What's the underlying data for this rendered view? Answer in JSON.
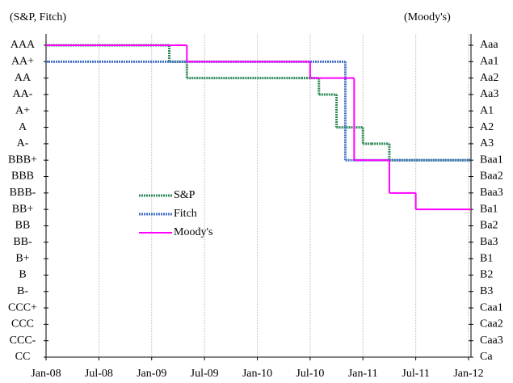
{
  "chart_data": {
    "type": "step",
    "y_label": "(S&P, Fitch)",
    "y2_label": "(Moody's)",
    "xlim": [
      "2008-01",
      "2012-01"
    ],
    "xticks": [
      {
        "value": "2008-01",
        "label": "Jan-08"
      },
      {
        "value": "2008-07",
        "label": "Jul-08"
      },
      {
        "value": "2009-01",
        "label": "Jan-09"
      },
      {
        "value": "2009-07",
        "label": "Jul-09"
      },
      {
        "value": "2010-01",
        "label": "Jan-10"
      },
      {
        "value": "2010-07",
        "label": "Jul-10"
      },
      {
        "value": "2011-01",
        "label": "Jan-11"
      },
      {
        "value": "2011-07",
        "label": "Jul-11"
      },
      {
        "value": "2012-01",
        "label": "Jan-12"
      }
    ],
    "ylim": [
      0,
      19
    ],
    "yticks": [
      {
        "value": 19,
        "label": "AAA"
      },
      {
        "value": 18,
        "label": "AA+"
      },
      {
        "value": 17,
        "label": "AA"
      },
      {
        "value": 16,
        "label": "AA-"
      },
      {
        "value": 15,
        "label": "A+"
      },
      {
        "value": 14,
        "label": "A"
      },
      {
        "value": 13,
        "label": "A-"
      },
      {
        "value": 12,
        "label": "BBB+"
      },
      {
        "value": 11,
        "label": "BBB"
      },
      {
        "value": 10,
        "label": "BBB-"
      },
      {
        "value": 9,
        "label": "BB+"
      },
      {
        "value": 8,
        "label": "BB"
      },
      {
        "value": 7,
        "label": "BB-"
      },
      {
        "value": 6,
        "label": "B+"
      },
      {
        "value": 5,
        "label": "B"
      },
      {
        "value": 4,
        "label": "B-"
      },
      {
        "value": 3,
        "label": "CCC+"
      },
      {
        "value": 2,
        "label": "CCC"
      },
      {
        "value": 1,
        "label": "CCC-"
      },
      {
        "value": 0,
        "label": "CC"
      }
    ],
    "y2lim": [
      0,
      19
    ],
    "y2ticks": [
      {
        "value": 19,
        "label": "Aaa"
      },
      {
        "value": 18,
        "label": "Aa1"
      },
      {
        "value": 17,
        "label": "Aa2"
      },
      {
        "value": 16,
        "label": "Aa3"
      },
      {
        "value": 15,
        "label": "A1"
      },
      {
        "value": 14,
        "label": "A2"
      },
      {
        "value": 13,
        "label": "A3"
      },
      {
        "value": 12,
        "label": "Baa1"
      },
      {
        "value": 11,
        "label": "Baa2"
      },
      {
        "value": 10,
        "label": "Baa3"
      },
      {
        "value": 9,
        "label": "Ba1"
      },
      {
        "value": 8,
        "label": "Ba2"
      },
      {
        "value": 7,
        "label": "Ba3"
      },
      {
        "value": 6,
        "label": "B1"
      },
      {
        "value": 5,
        "label": "B2"
      },
      {
        "value": 4,
        "label": "B3"
      },
      {
        "value": 3,
        "label": "Caa1"
      },
      {
        "value": 2,
        "label": "Caa2"
      },
      {
        "value": 1,
        "label": "Caa3"
      },
      {
        "value": 0,
        "label": "Ca"
      }
    ],
    "grid": "x",
    "series": [
      {
        "name": "S&P",
        "color": "#2e8b57",
        "dash": "2,1",
        "x": [
          "2008-01",
          "2009-03",
          "2009-05",
          "2010-06",
          "2010-08",
          "2010-10",
          "2011-01",
          "2011-02",
          "2011-04",
          "2012-01"
        ],
        "values": [
          19,
          18,
          17,
          17,
          16,
          14,
          13,
          13,
          12,
          12
        ]
      },
      {
        "name": "Fitch",
        "color": "#4472c4",
        "dash": "2,1",
        "x": [
          "2008-01",
          "2010-11",
          "2012-01"
        ],
        "values": [
          18,
          12,
          12
        ]
      },
      {
        "name": "Moody's",
        "color": "#ff00ff",
        "axis": "y2",
        "x": [
          "2008-01",
          "2009-05",
          "2010-07",
          "2010-12",
          "2011-04",
          "2011-07",
          "2012-01"
        ],
        "values": [
          19,
          18,
          17,
          12,
          10,
          9,
          9
        ]
      }
    ]
  }
}
